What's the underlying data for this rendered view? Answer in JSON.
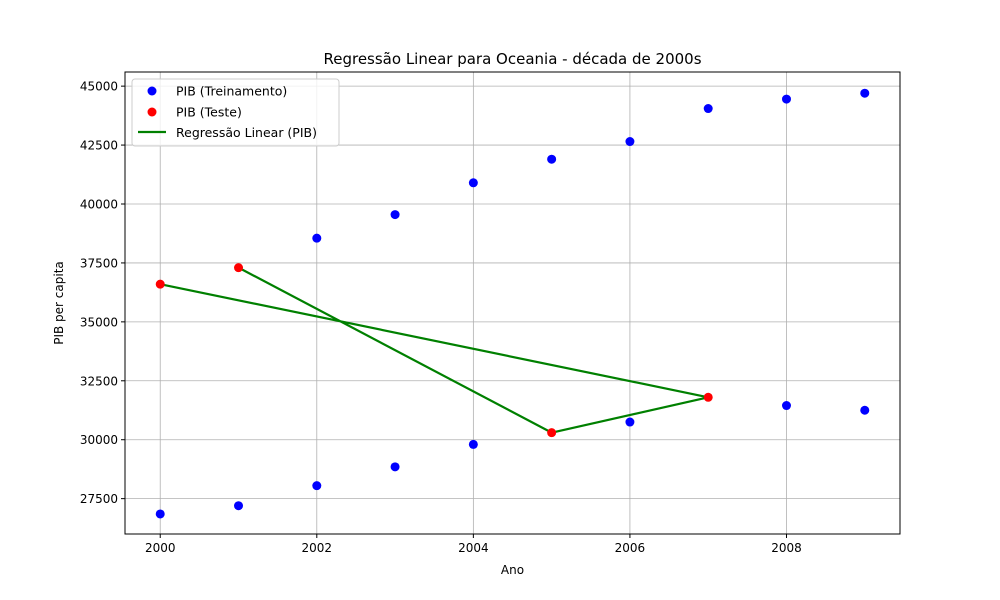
{
  "chart_data": {
    "type": "scatter",
    "title": "Regressão Linear para Oceania - década de 2000s",
    "xlabel": "Ano",
    "ylabel": "PIB per capita",
    "xlim": [
      1999.55,
      2009.45
    ],
    "ylim": [
      26000,
      45600
    ],
    "xticks": [
      2000,
      2002,
      2004,
      2006,
      2008
    ],
    "yticks": [
      27500,
      30000,
      32500,
      35000,
      37500,
      40000,
      42500,
      45000
    ],
    "grid": true,
    "legend_position": "top-left",
    "colors": {
      "train": "#0000ff",
      "test": "#ff0000",
      "regression": "#008000"
    },
    "series": [
      {
        "name": "PIB (Treinamento)",
        "kind": "scatter",
        "color": "#0000ff",
        "points": [
          [
            2000,
            26850
          ],
          [
            2001,
            27200
          ],
          [
            2002,
            28050
          ],
          [
            2003,
            28850
          ],
          [
            2004,
            29800
          ],
          [
            2006,
            30750
          ],
          [
            2008,
            31450
          ],
          [
            2009,
            31250
          ],
          [
            2002,
            38550
          ],
          [
            2003,
            39550
          ],
          [
            2004,
            40900
          ],
          [
            2005,
            41900
          ],
          [
            2006,
            42650
          ],
          [
            2007,
            44050
          ],
          [
            2008,
            44450
          ],
          [
            2009,
            44700
          ]
        ]
      },
      {
        "name": "PIB (Teste)",
        "kind": "scatter",
        "color": "#ff0000",
        "points": [
          [
            2000,
            36600
          ],
          [
            2001,
            37300
          ],
          [
            2005,
            30300
          ],
          [
            2007,
            31800
          ]
        ]
      },
      {
        "name": "Regressão Linear (PIB)",
        "kind": "line",
        "color": "#008000",
        "points": [
          [
            2000,
            36600
          ],
          [
            2007,
            31800
          ],
          [
            2005,
            30300
          ],
          [
            2001,
            37300
          ]
        ]
      }
    ]
  }
}
